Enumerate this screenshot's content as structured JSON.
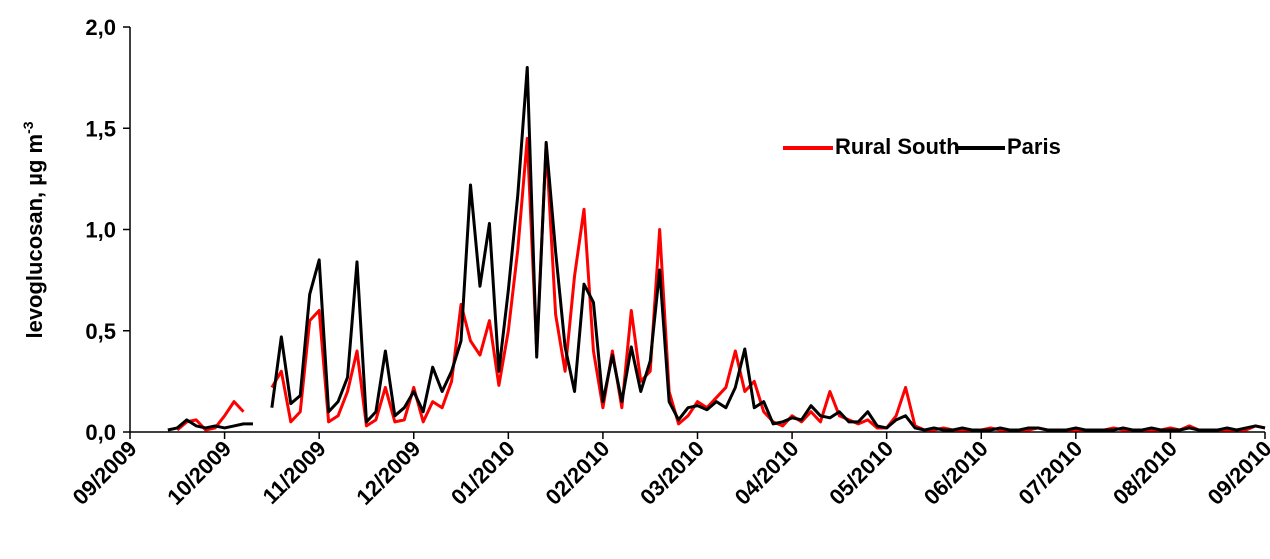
{
  "chart_data": {
    "type": "line",
    "ylabel": "levoglucosan,  µg m",
    "ylabel_sup": "-3",
    "xlim": [
      0,
      12
    ],
    "xticks": [
      {
        "value": 0,
        "label": "09/2009"
      },
      {
        "value": 1,
        "label": "10/2009"
      },
      {
        "value": 2,
        "label": "11/2009"
      },
      {
        "value": 3,
        "label": "12/2009"
      },
      {
        "value": 4,
        "label": "01/2010"
      },
      {
        "value": 5,
        "label": "02/2010"
      },
      {
        "value": 6,
        "label": "03/2010"
      },
      {
        "value": 7,
        "label": "04/2010"
      },
      {
        "value": 8,
        "label": "05/2010"
      },
      {
        "value": 9,
        "label": "06/2010"
      },
      {
        "value": 10,
        "label": "07/2010"
      },
      {
        "value": 11,
        "label": "08/2010"
      },
      {
        "value": 12,
        "label": "09/2010"
      }
    ],
    "ylim": [
      0,
      2
    ],
    "yticks": [
      {
        "value": 0,
        "label": "0,0"
      },
      {
        "value": 0.5,
        "label": "0,5"
      },
      {
        "value": 1,
        "label": "1,0"
      },
      {
        "value": 1.5,
        "label": "1,5"
      },
      {
        "value": 2,
        "label": "2,0"
      }
    ],
    "grid": false,
    "legend": "upper right",
    "x": [
      0.4,
      0.5,
      0.6,
      0.7,
      0.8,
      0.9,
      1.0,
      1.1,
      1.2,
      1.3,
      1.4,
      1.5,
      1.6,
      1.7,
      1.8,
      1.9,
      2.0,
      2.1,
      2.2,
      2.3,
      2.4,
      2.5,
      2.6,
      2.7,
      2.8,
      2.9,
      3.0,
      3.1,
      3.2,
      3.3,
      3.4,
      3.5,
      3.6,
      3.7,
      3.8,
      3.9,
      4.0,
      4.1,
      4.2,
      4.3,
      4.4,
      4.5,
      4.6,
      4.7,
      4.8,
      4.9,
      5.0,
      5.1,
      5.2,
      5.3,
      5.4,
      5.5,
      5.6,
      5.7,
      5.8,
      5.9,
      6.0,
      6.1,
      6.2,
      6.3,
      6.4,
      6.5,
      6.6,
      6.7,
      6.8,
      6.9,
      7.0,
      7.1,
      7.2,
      7.3,
      7.4,
      7.5,
      7.6,
      7.7,
      7.8,
      7.9,
      8.0,
      8.1,
      8.2,
      8.3,
      8.4,
      8.5,
      8.6,
      8.7,
      8.8,
      8.9,
      9.0,
      9.1,
      9.2,
      9.3,
      9.4,
      9.5,
      9.6,
      9.7,
      9.8,
      9.9,
      10.0,
      10.1,
      10.2,
      10.3,
      10.4,
      10.5,
      10.6,
      10.7,
      10.8,
      10.9,
      11.0,
      11.1,
      11.2,
      11.3,
      11.4,
      11.5,
      11.6,
      11.7,
      11.8,
      11.9,
      12.0
    ],
    "series": [
      {
        "name": "Rural South",
        "color": "#ff0000",
        "values": [
          null,
          0.01,
          0.05,
          0.06,
          0.01,
          0.02,
          0.08,
          0.15,
          0.1,
          null,
          null,
          0.22,
          0.3,
          0.05,
          0.1,
          0.55,
          0.6,
          0.05,
          0.08,
          0.2,
          0.4,
          0.03,
          0.06,
          0.22,
          0.05,
          0.06,
          0.22,
          0.05,
          0.15,
          0.12,
          0.25,
          0.63,
          0.45,
          0.38,
          0.55,
          0.23,
          0.5,
          0.9,
          1.45,
          0.4,
          1.42,
          0.58,
          0.3,
          0.77,
          1.1,
          0.4,
          0.12,
          0.4,
          0.12,
          0.6,
          0.25,
          0.3,
          1.0,
          0.2,
          0.04,
          0.08,
          0.15,
          0.12,
          0.17,
          0.22,
          0.4,
          0.2,
          0.25,
          0.1,
          0.05,
          0.03,
          0.08,
          0.05,
          0.1,
          0.05,
          0.2,
          0.08,
          0.06,
          0.04,
          0.06,
          0.02,
          0.02,
          0.08,
          0.22,
          0.03,
          0.01,
          0.01,
          0.02,
          0.01,
          0.01,
          0.01,
          0.01,
          0.02,
          0.01,
          0.01,
          0.01,
          0.01,
          0.02,
          0.01,
          0.01,
          0.01,
          0.01,
          0.01,
          0.01,
          0.01,
          0.02,
          0.01,
          0.01,
          0.01,
          0.01,
          0.01,
          0.02,
          0.01,
          0.03,
          0.01,
          0.01,
          0.01,
          0.01,
          0.01,
          0.01,
          0.03,
          0.02
        ]
      },
      {
        "name": "Paris",
        "color": "#000000",
        "values": [
          0.01,
          0.02,
          0.06,
          0.03,
          0.02,
          0.03,
          0.02,
          0.03,
          0.04,
          0.04,
          null,
          0.12,
          0.47,
          0.14,
          0.18,
          0.68,
          0.85,
          0.1,
          0.15,
          0.27,
          0.84,
          0.05,
          0.1,
          0.4,
          0.08,
          0.12,
          0.2,
          0.1,
          0.32,
          0.2,
          0.3,
          0.45,
          1.22,
          0.72,
          1.03,
          0.3,
          0.7,
          1.17,
          1.8,
          0.37,
          1.43,
          0.89,
          0.42,
          0.2,
          0.73,
          0.64,
          0.15,
          0.38,
          0.15,
          0.42,
          0.2,
          0.35,
          0.8,
          0.15,
          0.06,
          0.12,
          0.13,
          0.11,
          0.15,
          0.12,
          0.22,
          0.41,
          0.12,
          0.15,
          0.04,
          0.05,
          0.07,
          0.06,
          0.13,
          0.08,
          0.07,
          0.1,
          0.05,
          0.05,
          0.1,
          0.03,
          0.02,
          0.06,
          0.08,
          0.02,
          0.01,
          0.02,
          0.01,
          0.01,
          0.02,
          0.01,
          0.01,
          0.01,
          0.02,
          0.01,
          0.01,
          0.02,
          0.02,
          0.01,
          0.01,
          0.01,
          0.02,
          0.01,
          0.01,
          0.01,
          0.01,
          0.02,
          0.01,
          0.01,
          0.02,
          0.01,
          0.01,
          0.01,
          0.02,
          0.01,
          0.01,
          0.01,
          0.02,
          0.01,
          0.02,
          0.03,
          0.02
        ]
      }
    ]
  }
}
